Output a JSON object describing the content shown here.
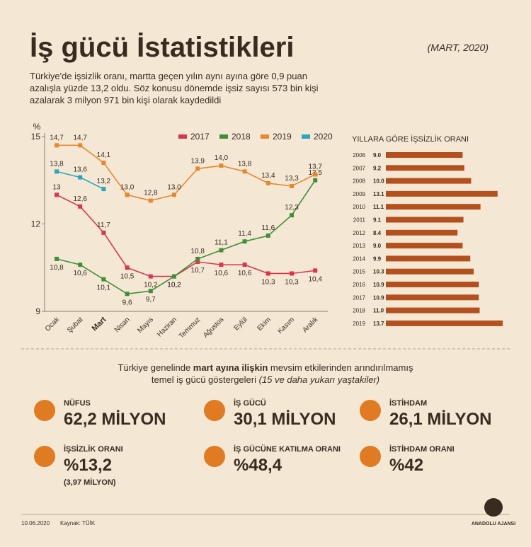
{
  "header": {
    "title": "İş gücü İstatistikleri",
    "date": "(MART, 2020)",
    "intro": [
      "Türkiye'de işsizlik oranı, martta geçen yılın aynı ayına göre 0,9 puan",
      "azalışla yüzde 13,2 oldu. Söz konusu dönemde işsiz sayısı 573 bin kişi",
      "azalarak 3 milyon 971 bin kişi olarak kaydedildi"
    ]
  },
  "chart_data": [
    {
      "type": "line",
      "y_label": "%",
      "categories": [
        "Ocak",
        "Şubat",
        "Mart",
        "Nisan",
        "Mayıs",
        "Haziran",
        "Temmuz",
        "Ağustos",
        "Eylül",
        "Ekim",
        "Kasım",
        "Aralık"
      ],
      "ylim": [
        9,
        15
      ],
      "yticks": [
        9,
        12,
        15
      ],
      "series": [
        {
          "name": "2017",
          "color": "#d9364a",
          "values": [
            13,
            12.6,
            11.7,
            10.5,
            10.2,
            10.2,
            10.7,
            10.6,
            10.6,
            10.3,
            10.3,
            10.4
          ],
          "value_labels": [
            "13",
            "12,6",
            "11,7",
            "10,5",
            "10,2",
            "10,2",
            "10,7",
            "10,6",
            "10,6",
            "10,3",
            "10,3",
            "10,4"
          ]
        },
        {
          "name": "2018",
          "color": "#3f8f3a",
          "values": [
            10.8,
            10.6,
            10.1,
            9.6,
            9.7,
            10.2,
            10.8,
            11.1,
            11.4,
            11.6,
            12.3,
            13.5
          ],
          "value_labels": [
            "10,8",
            "10,6",
            "10,1",
            "9,6",
            "9,7",
            "10,2",
            "10,8",
            "11,1",
            "11,4",
            "11,6",
            "12,3",
            "13,5"
          ]
        },
        {
          "name": "2019",
          "color": "#e8872c",
          "values": [
            14.7,
            14.7,
            14.1,
            13.0,
            12.8,
            13.0,
            13.9,
            14.0,
            13.8,
            13.4,
            13.3,
            13.7
          ],
          "value_labels": [
            "14,7",
            "14,7",
            "14,1",
            "13,0",
            "12,8",
            "13,0",
            "13,9",
            "14,0",
            "13,8",
            "13,4",
            "13,3",
            "13,7"
          ]
        },
        {
          "name": "2020",
          "color": "#27a6c2",
          "values": [
            13.8,
            13.6,
            13.2,
            null,
            null,
            null,
            null,
            null,
            null,
            null,
            null,
            null
          ],
          "value_labels": [
            "13,8",
            "13,6",
            "13,2",
            null,
            null,
            null,
            null,
            null,
            null,
            null,
            null,
            null
          ]
        }
      ]
    },
    {
      "type": "hbar",
      "title": "YILLARA GÖRE İŞSİZLİK ORANI",
      "color": "#b4501e",
      "categories": [
        "2006",
        "2007",
        "2008",
        "2009",
        "2010",
        "2011",
        "2012",
        "2013",
        "2014",
        "2015",
        "2016",
        "2017",
        "2018",
        "2019"
      ],
      "values": [
        9.0,
        9.2,
        10.0,
        13.1,
        11.1,
        9.1,
        8.4,
        9.0,
        9.9,
        10.3,
        10.9,
        10.9,
        11.0,
        13.7
      ],
      "value_labels": [
        "9.0",
        "9.2",
        "10.0",
        "13.1",
        "11.1",
        "9.1",
        "8.4",
        "9.0",
        "9.9",
        "10.3",
        "10.9",
        "10.9",
        "11.0",
        "13.7"
      ]
    }
  ],
  "indicators": {
    "intro": [
      [
        "Türkiye genelinde ",
        "mart ayına ilişkin",
        " mevsim etkilerinden arındırılmamış"
      ],
      [
        "temel iş gücü göstergeleri ",
        "(15 ve daha yukarı yaştakiler)"
      ]
    ],
    "items": [
      {
        "label": "NÜFUS",
        "value": "62,2 MİLYON"
      },
      {
        "label": "İŞ GÜCÜ",
        "value": "30,1 MİLYON"
      },
      {
        "label": "İSTİHDAM",
        "value": "26,1 MİLYON"
      },
      {
        "label": "İŞSİZLİK ORANI",
        "value": "%13,2",
        "note": "(3,97 MİLYON)"
      },
      {
        "label": "İŞ GÜCÜNE KATILMA ORANI",
        "value": "%48,4"
      },
      {
        "label": "İSTİHDAM ORANI",
        "value": "%42"
      }
    ]
  },
  "footer": {
    "date": "10.06.2020",
    "source": "Kaynak: TÜİK",
    "agency": "ANADOLU AJANSI"
  }
}
